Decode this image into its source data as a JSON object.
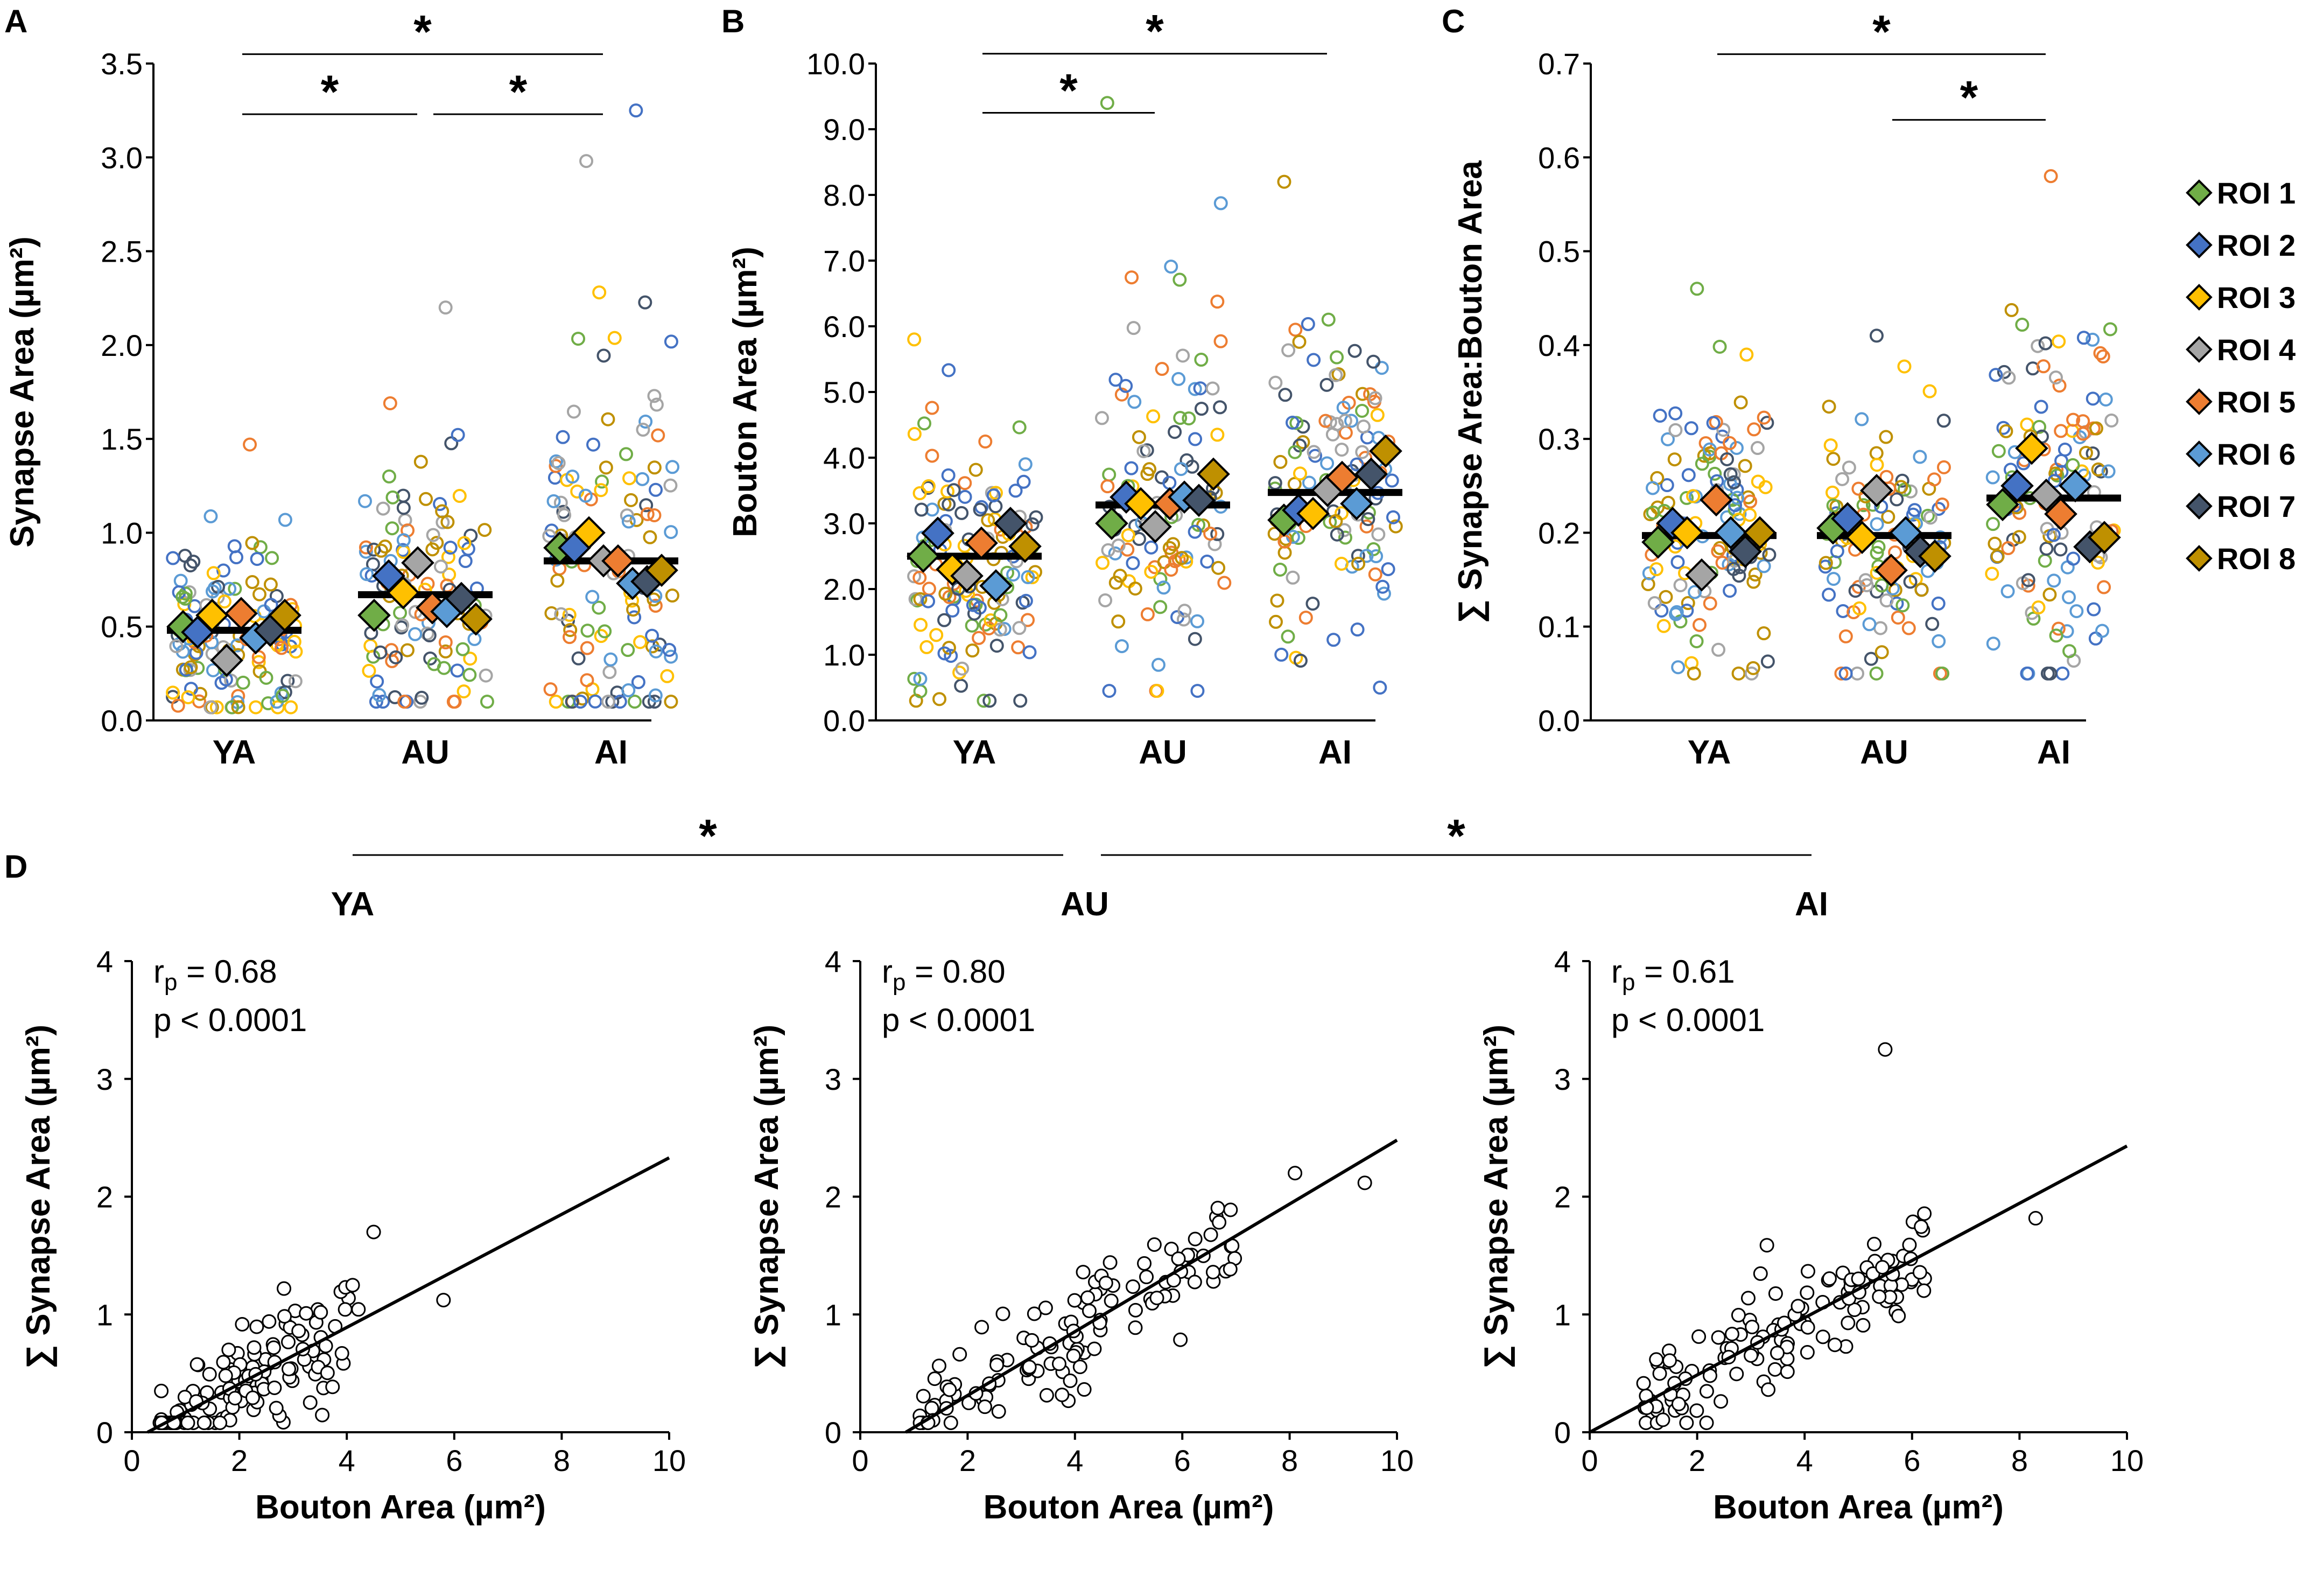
{
  "colors": {
    "ROI 1": "#70AD47",
    "ROI 2": "#4472C4",
    "ROI 3": "#FFC000",
    "ROI 4": "#A5A5A5",
    "ROI 5": "#ED7D31",
    "ROI 6": "#5B9BD5",
    "ROI 7": "#44546A",
    "ROI 8": "#BF9000"
  },
  "legend": [
    "ROI 1",
    "ROI 2",
    "ROI 3",
    "ROI 4",
    "ROI 5",
    "ROI 6",
    "ROI 7",
    "ROI 8"
  ],
  "chart_data": [
    {
      "id": "A",
      "type": "scatter",
      "panel_label": "A",
      "ylabel": "Synapse Area (µm²)",
      "ylim": [
        0,
        3.5
      ],
      "yticks": [
        "0.0",
        "0.5",
        "1.0",
        "1.5",
        "2.0",
        "2.5",
        "3.0",
        "3.5"
      ],
      "categories": [
        "YA",
        "AU",
        "AI"
      ],
      "means": [
        0.48,
        0.67,
        0.85
      ],
      "roi_means": {
        "YA": [
          0.5,
          0.47,
          0.56,
          0.32,
          0.57,
          0.44,
          0.48,
          0.56
        ],
        "AU": [
          0.56,
          0.77,
          0.68,
          0.84,
          0.6,
          0.58,
          0.65,
          0.54
        ],
        "AI": [
          0.92,
          0.92,
          1.0,
          0.85,
          0.85,
          0.73,
          0.74,
          0.8
        ]
      },
      "point_ranges": {
        "YA": {
          "n": 130,
          "min": 0.07,
          "max": 1.47
        },
        "AU": {
          "n": 110,
          "min": 0.1,
          "max": 2.2
        },
        "AI": {
          "n": 120,
          "min": 0.1,
          "max": 3.25
        }
      },
      "significance": [
        {
          "from": "YA",
          "to": "AI",
          "label": "*",
          "y": 3.55
        },
        {
          "from": "YA",
          "to": "AU",
          "label": "*",
          "y": 3.23
        },
        {
          "from": "AU",
          "to": "AI",
          "label": "*",
          "y": 3.23
        }
      ]
    },
    {
      "id": "B",
      "type": "scatter",
      "panel_label": "B",
      "ylabel": "Bouton Area (µm²)",
      "ylim": [
        0,
        10
      ],
      "yticks": [
        "0.0",
        "1.0",
        "2.0",
        "3.0",
        "4.0",
        "5.0",
        "6.0",
        "7.0",
        "8.0",
        "9.0",
        "10.0"
      ],
      "categories": [
        "YA",
        "AU",
        "AI"
      ],
      "means": [
        2.5,
        3.28,
        3.47
      ],
      "roi_means": {
        "YA": [
          2.5,
          2.85,
          2.3,
          2.2,
          2.7,
          2.05,
          3.0,
          2.65
        ],
        "AU": [
          3.0,
          3.4,
          3.3,
          2.95,
          3.3,
          3.4,
          3.35,
          3.75
        ],
        "AI": [
          3.05,
          3.2,
          3.15,
          3.5,
          3.7,
          3.3,
          3.75,
          4.1
        ]
      },
      "point_ranges": {
        "YA": {
          "n": 130,
          "min": 0.3,
          "max": 5.8
        },
        "AU": {
          "n": 110,
          "min": 0.45,
          "max": 9.4
        },
        "AI": {
          "n": 120,
          "min": 0.5,
          "max": 8.2
        }
      },
      "significance": [
        {
          "from": "YA",
          "to": "AI",
          "label": "*",
          "y": 10.15
        },
        {
          "from": "YA",
          "to": "AU",
          "label": "*",
          "y": 9.25
        }
      ]
    },
    {
      "id": "C",
      "type": "scatter",
      "panel_label": "C",
      "ylabel": "∑ Synapse Area:Bouton Area",
      "ylim": [
        0,
        0.7
      ],
      "yticks": [
        "0.0",
        "0.1",
        "0.2",
        "0.3",
        "0.4",
        "0.5",
        "0.6",
        "0.7"
      ],
      "categories": [
        "YA",
        "AU",
        "AI"
      ],
      "means": [
        0.197,
        0.197,
        0.237
      ],
      "roi_means": {
        "YA": [
          0.19,
          0.21,
          0.2,
          0.155,
          0.235,
          0.2,
          0.18,
          0.2
        ],
        "AU": [
          0.205,
          0.215,
          0.195,
          0.245,
          0.16,
          0.2,
          0.18,
          0.175
        ],
        "AI": [
          0.23,
          0.25,
          0.29,
          0.24,
          0.22,
          0.25,
          0.185,
          0.195
        ]
      },
      "point_ranges": {
        "YA": {
          "n": 130,
          "min": 0.05,
          "max": 0.46
        },
        "AU": {
          "n": 110,
          "min": 0.05,
          "max": 0.41
        },
        "AI": {
          "n": 120,
          "min": 0.05,
          "max": 0.58
        }
      },
      "significance": [
        {
          "from": "YA",
          "to": "AI",
          "label": "*",
          "y": 0.71
        },
        {
          "from": "AU",
          "to": "AI",
          "label": "*",
          "y": 0.64
        }
      ]
    },
    {
      "id": "D-YA",
      "type": "scatter",
      "title": "YA",
      "xlabel": "Bouton Area (µm²)",
      "ylabel": "∑ Synapse Area (µm²)",
      "xlim": [
        0,
        10
      ],
      "ylim": [
        0,
        4
      ],
      "xticks": [
        "0",
        "2",
        "4",
        "6",
        "8",
        "10"
      ],
      "yticks": [
        "0",
        "1",
        "2",
        "3",
        "4"
      ],
      "r_label": "r",
      "r_sub": "p",
      "r_value": " = 0.68",
      "p_text": "p < 0.0001",
      "fit": {
        "slope": 0.24,
        "intercept": -0.07
      },
      "points": {
        "n": 130,
        "x_range": [
          0.5,
          5.8
        ],
        "max_point": [
          4.5,
          1.7
        ]
      }
    },
    {
      "id": "D-AU",
      "type": "scatter",
      "title": "AU",
      "xlabel": "Bouton Area (µm²)",
      "ylabel": "∑ Synapse Area (µm²)",
      "xlim": [
        0,
        10
      ],
      "ylim": [
        0,
        4
      ],
      "xticks": [
        "0",
        "2",
        "4",
        "6",
        "8",
        "10"
      ],
      "yticks": [
        "0",
        "1",
        "2",
        "3",
        "4"
      ],
      "r_label": "r",
      "r_sub": "p",
      "r_value": " = 0.80",
      "p_text": "p < 0.0001",
      "fit": {
        "slope": 0.271,
        "intercept": -0.23
      },
      "points": {
        "n": 120,
        "x_range": [
          1.1,
          9.4
        ],
        "max_point": [
          8.1,
          2.2
        ]
      }
    },
    {
      "id": "D-AI",
      "type": "scatter",
      "title": "AI",
      "xlabel": "Bouton Area (µm²)",
      "ylabel": "∑ Synapse Area (µm²)",
      "xlim": [
        0,
        10
      ],
      "ylim": [
        0,
        4
      ],
      "xticks": [
        "0",
        "2",
        "4",
        "6",
        "8",
        "10"
      ],
      "yticks": [
        "0",
        "1",
        "2",
        "3",
        "4"
      ],
      "r_label": "r",
      "r_sub": "p",
      "r_value": " = 0.61",
      "p_text": "p < 0.0001",
      "fit": {
        "slope": 0.243,
        "intercept": 0.0
      },
      "points": {
        "n": 130,
        "x_range": [
          1.0,
          8.3
        ],
        "max_point": [
          5.5,
          3.25
        ]
      }
    }
  ],
  "panel_d": {
    "panel_label": "D",
    "significance": [
      {
        "from": "YA",
        "to": "AU",
        "label": "*"
      },
      {
        "from": "AU",
        "to": "AI",
        "label": "*"
      }
    ]
  }
}
